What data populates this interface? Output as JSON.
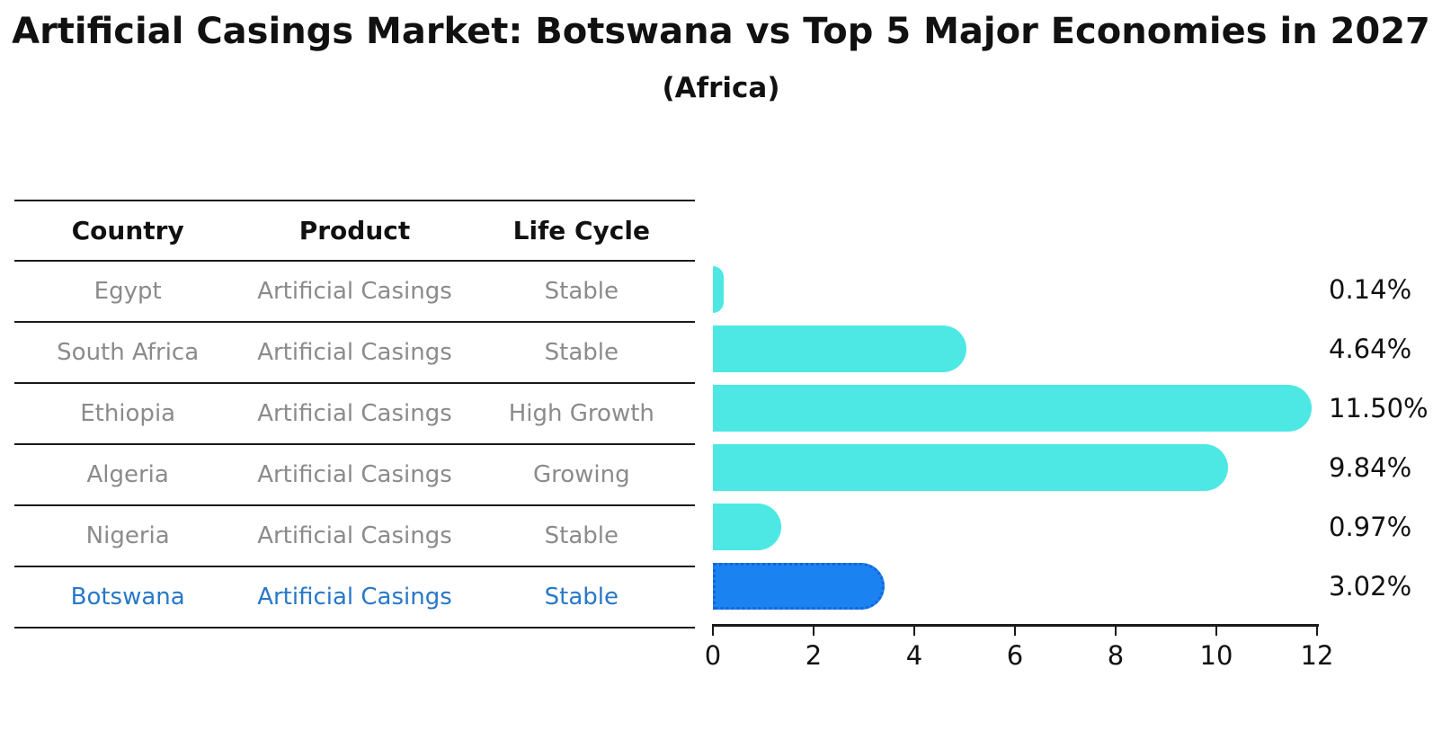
{
  "title": "Artificial Casings Market: Botswana vs Top 5 Major Economies in 2027",
  "subtitle": "(Africa)",
  "colors": {
    "bar": "#4DE8E4",
    "highlight_bar": "#1B82F1",
    "highlight_border": "#1565D8",
    "highlight_text": "#2878C8",
    "table_text": "#8B8B8B",
    "header_text": "#111111",
    "axis": "#1A1A1A"
  },
  "table": {
    "headers": [
      "Country",
      "Product",
      "Life Cycle"
    ],
    "rows": [
      {
        "country": "Egypt",
        "product": "Artificial Casings",
        "life_cycle": "Stable",
        "highlight": false
      },
      {
        "country": "South Africa",
        "product": "Artificial Casings",
        "life_cycle": "Stable",
        "highlight": false
      },
      {
        "country": "Ethiopia",
        "product": "Artificial Casings",
        "life_cycle": "High Growth",
        "highlight": false
      },
      {
        "country": "Algeria",
        "product": "Artificial Casings",
        "life_cycle": "Growing",
        "highlight": false
      },
      {
        "country": "Nigeria",
        "product": "Artificial Casings",
        "life_cycle": "Stable",
        "highlight": false
      },
      {
        "country": "Botswana",
        "product": "Artificial Casings",
        "life_cycle": "Stable",
        "highlight": true
      }
    ]
  },
  "chart_data": {
    "type": "bar",
    "orientation": "horizontal",
    "title": "Artificial Casings Market: Botswana vs Top 5 Major Economies in 2027",
    "subtitle": "(Africa)",
    "categories": [
      "Egypt",
      "South Africa",
      "Ethiopia",
      "Algeria",
      "Nigeria",
      "Botswana"
    ],
    "values": [
      0.14,
      4.64,
      11.5,
      9.84,
      0.97,
      3.02
    ],
    "value_labels": [
      "0.14%",
      "4.64%",
      "11.50%",
      "9.84%",
      "0.97%",
      "3.02%"
    ],
    "highlight_index": 5,
    "x_ticks": [
      "0",
      "2",
      "4",
      "6",
      "8",
      "10",
      "12"
    ],
    "xlim": [
      0,
      12
    ],
    "xlabel": "",
    "ylabel": "",
    "grid": false,
    "legend": false
  }
}
